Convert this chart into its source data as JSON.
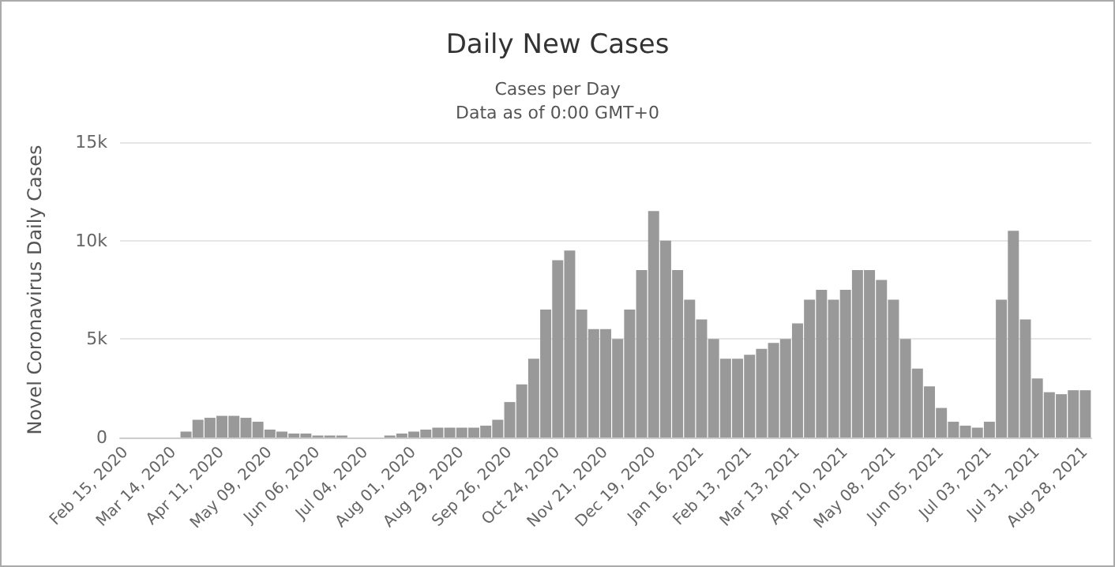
{
  "chart_data": {
    "type": "bar",
    "title": "Daily New Cases",
    "subtitle": "Cases per Day\nData as of 0:00 GMT+0",
    "ylabel": "Novel Coronavirus Daily Cases",
    "categories": [
      "Feb 15, 2020",
      null,
      null,
      null,
      "Mar 14, 2020",
      null,
      null,
      null,
      "Apr 11, 2020",
      null,
      null,
      null,
      "May 09, 2020",
      null,
      null,
      null,
      "Jun 06, 2020",
      null,
      null,
      null,
      "Jul 04, 2020",
      null,
      null,
      null,
      "Aug 01, 2020",
      null,
      null,
      null,
      "Aug 29, 2020",
      null,
      null,
      null,
      "Sep 26, 2020",
      null,
      null,
      null,
      "Oct 24, 2020",
      null,
      null,
      null,
      "Nov 21, 2020",
      null,
      null,
      null,
      "Dec 19, 2020",
      null,
      null,
      null,
      "Jan 16, 2021",
      null,
      null,
      null,
      "Feb 13, 2021",
      null,
      null,
      null,
      "Mar 13, 2021",
      null,
      null,
      null,
      "Apr 10, 2021",
      null,
      null,
      null,
      "May 08, 2021",
      null,
      null,
      null,
      "Jun 05, 2021",
      null,
      null,
      null,
      "Jul 03, 2021",
      null,
      null,
      null,
      "Jul 31, 2021",
      null,
      null,
      null,
      "Aug 28, 2021"
    ],
    "values": [
      0,
      0,
      0,
      0,
      0,
      300,
      900,
      1000,
      1100,
      1100,
      1000,
      800,
      400,
      300,
      200,
      200,
      100,
      100,
      100,
      0,
      0,
      0,
      100,
      200,
      300,
      400,
      500,
      500,
      500,
      500,
      600,
      900,
      1800,
      2700,
      4000,
      6500,
      9000,
      9500,
      6500,
      5500,
      5500,
      5000,
      6500,
      8500,
      11500,
      10000,
      8500,
      7000,
      6000,
      5000,
      4000,
      4000,
      4200,
      4500,
      4800,
      5000,
      5800,
      7000,
      7500,
      7000,
      7500,
      8500,
      8500,
      8000,
      7000,
      5000,
      3500,
      2600,
      1500,
      800,
      600,
      500,
      800,
      7000,
      10500,
      6000,
      3000,
      2300,
      2200,
      2400,
      2400
    ],
    "color": "#999999",
    "ylim": [
      0,
      15000
    ],
    "yticks": [
      {
        "value": 0,
        "label": "0"
      },
      {
        "value": 5000,
        "label": "5k"
      },
      {
        "value": 10000,
        "label": "10k"
      },
      {
        "value": 15000,
        "label": "15k"
      }
    ],
    "grid": "y"
  }
}
